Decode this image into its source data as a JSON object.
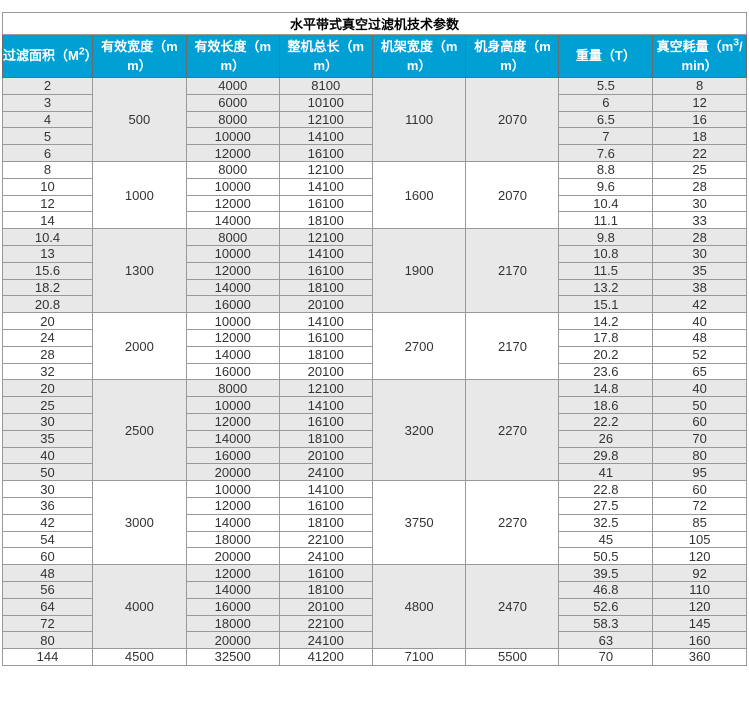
{
  "table": {
    "title": "水平带式真空过滤机技术参数",
    "columns": [
      "过滤面积（M²）",
      "有效宽度（mm）",
      "有效长度（mm）",
      "整机总长（mm）",
      "机架宽度（mm）",
      "机身高度（mm）",
      "重量（T）",
      "真空耗量（m³/min）"
    ],
    "groups": [
      {
        "effective_width": "500",
        "frame_width": "1100",
        "body_height": "2070",
        "rows": [
          [
            "2",
            "4000",
            "8100",
            "5.5",
            "8"
          ],
          [
            "3",
            "6000",
            "10100",
            "6",
            "12"
          ],
          [
            "4",
            "8000",
            "12100",
            "6.5",
            "16"
          ],
          [
            "5",
            "10000",
            "14100",
            "7",
            "18"
          ],
          [
            "6",
            "12000",
            "16100",
            "7.6",
            "22"
          ]
        ]
      },
      {
        "effective_width": "1000",
        "frame_width": "1600",
        "body_height": "2070",
        "rows": [
          [
            "8",
            "8000",
            "12100",
            "8.8",
            "25"
          ],
          [
            "10",
            "10000",
            "14100",
            "9.6",
            "28"
          ],
          [
            "12",
            "12000",
            "16100",
            "10.4",
            "30"
          ],
          [
            "14",
            "14000",
            "18100",
            "11.1",
            "33"
          ]
        ]
      },
      {
        "effective_width": "1300",
        "frame_width": "1900",
        "body_height": "2170",
        "rows": [
          [
            "10.4",
            "8000",
            "12100",
            "9.8",
            "28"
          ],
          [
            "13",
            "10000",
            "14100",
            "10.8",
            "30"
          ],
          [
            "15.6",
            "12000",
            "16100",
            "11.5",
            "35"
          ],
          [
            "18.2",
            "14000",
            "18100",
            "13.2",
            "38"
          ],
          [
            "20.8",
            "16000",
            "20100",
            "15.1",
            "42"
          ]
        ]
      },
      {
        "effective_width": "2000",
        "frame_width": "2700",
        "body_height": "2170",
        "rows": [
          [
            "20",
            "10000",
            "14100",
            "14.2",
            "40"
          ],
          [
            "24",
            "12000",
            "16100",
            "17.8",
            "48"
          ],
          [
            "28",
            "14000",
            "18100",
            "20.2",
            "52"
          ],
          [
            "32",
            "16000",
            "20100",
            "23.6",
            "65"
          ]
        ]
      },
      {
        "effective_width": "2500",
        "frame_width": "3200",
        "body_height": "2270",
        "rows": [
          [
            "20",
            "8000",
            "12100",
            "14.8",
            "40"
          ],
          [
            "25",
            "10000",
            "14100",
            "18.6",
            "50"
          ],
          [
            "30",
            "12000",
            "16100",
            "22.2",
            "60"
          ],
          [
            "35",
            "14000",
            "18100",
            "26",
            "70"
          ],
          [
            "40",
            "16000",
            "20100",
            "29.8",
            "80"
          ],
          [
            "50",
            "20000",
            "24100",
            "41",
            "95"
          ]
        ]
      },
      {
        "effective_width": "3000",
        "frame_width": "3750",
        "body_height": "2270",
        "rows": [
          [
            "30",
            "10000",
            "14100",
            "22.8",
            "60"
          ],
          [
            "36",
            "12000",
            "16100",
            "27.5",
            "72"
          ],
          [
            "42",
            "14000",
            "18100",
            "32.5",
            "85"
          ],
          [
            "54",
            "18000",
            "22100",
            "45",
            "105"
          ],
          [
            "60",
            "20000",
            "24100",
            "50.5",
            "120"
          ]
        ]
      },
      {
        "effective_width": "4000",
        "frame_width": "4800",
        "body_height": "2470",
        "rows": [
          [
            "48",
            "12000",
            "16100",
            "39.5",
            "92"
          ],
          [
            "56",
            "14000",
            "18100",
            "46.8",
            "110"
          ],
          [
            "64",
            "16000",
            "20100",
            "52.6",
            "120"
          ],
          [
            "72",
            "18000",
            "22100",
            "58.3",
            "145"
          ],
          [
            "80",
            "20000",
            "24100",
            "63",
            "160"
          ]
        ]
      },
      {
        "effective_width": "4500",
        "frame_width": "7100",
        "body_height": "5500",
        "rows": [
          [
            "144",
            "32500",
            "41200",
            "70",
            "360"
          ]
        ]
      }
    ],
    "colors": {
      "header_bg": "#009fd4",
      "header_text": "#ffffff",
      "stripe_bg": "#e8e8e8",
      "border": "#999999",
      "text": "#333333"
    }
  }
}
